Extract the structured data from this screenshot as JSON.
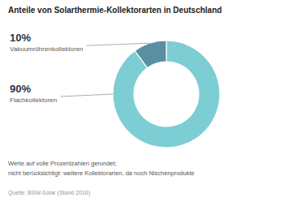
{
  "chart_data": {
    "type": "pie",
    "title": "Anteile von Solarthermie-Kollektorarten in Deutschland",
    "categories": [
      "Flachkollektoren",
      "Vakuumröhrenkollektoren"
    ],
    "values": [
      90,
      10
    ],
    "value_labels": [
      "90%",
      "10%"
    ],
    "colors": [
      "#7dcdd4",
      "#5a8fa3"
    ],
    "data_labels": true,
    "annotations": [
      "Werte auf volle Prozentzahlen gerundet;",
      "nicht berücksichtigt: weitere Kollektorarten, da noch Nischenprodukte",
      "Quelle: BSW-Solar (Stand 2016)"
    ]
  }
}
